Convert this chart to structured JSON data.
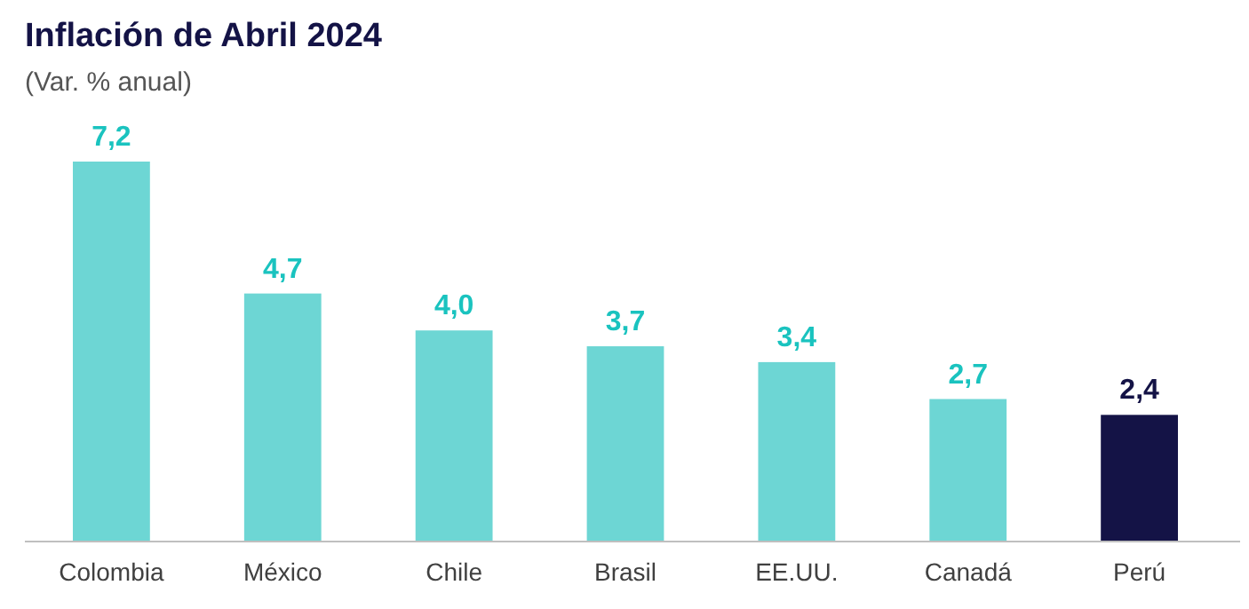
{
  "chart_data": {
    "type": "bar",
    "title": "Inflación de Abril 2024",
    "subtitle": "(Var. % anual)",
    "categories": [
      "Colombia",
      "México",
      "Chile",
      "Brasil",
      "EE.UU.",
      "Canadá",
      "Perú"
    ],
    "values": [
      7.2,
      4.7,
      4.0,
      3.7,
      3.4,
      2.7,
      2.4
    ],
    "colors": [
      "#6dd6d4",
      "#6dd6d4",
      "#6dd6d4",
      "#6dd6d4",
      "#6dd6d4",
      "#6dd6d4",
      "#141346"
    ],
    "value_labels": [
      "7,2",
      "4,7",
      "4,0",
      "3,7",
      "3,4",
      "2,7",
      "2,4"
    ]
  }
}
